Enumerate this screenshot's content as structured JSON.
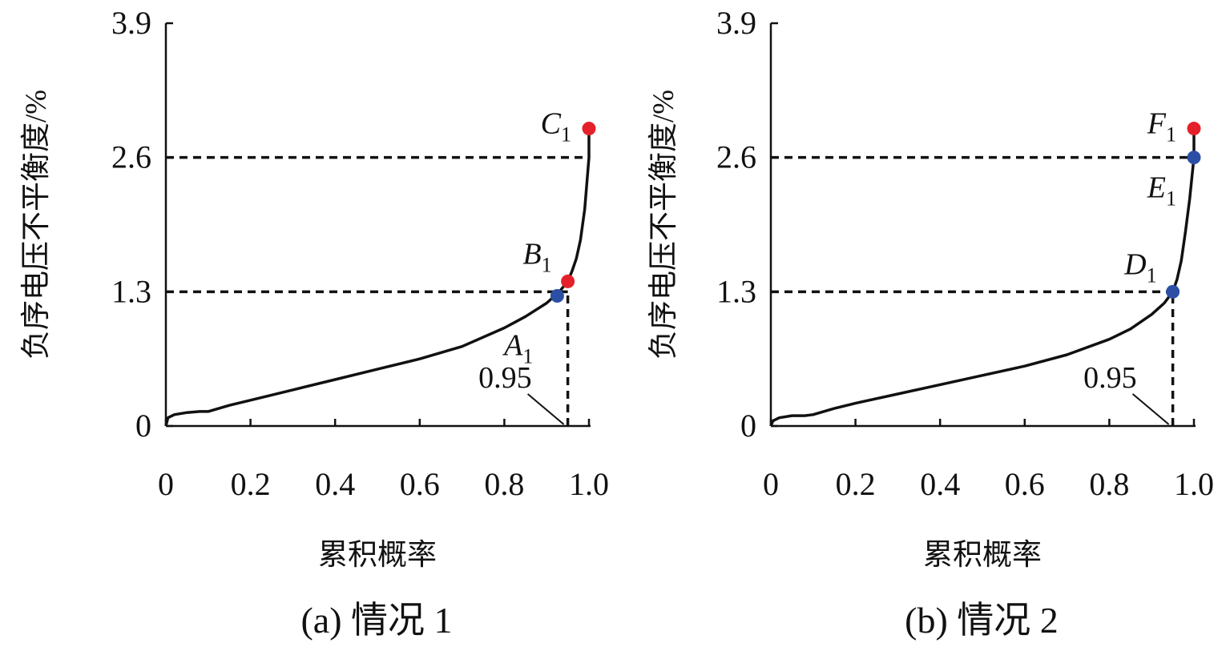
{
  "chart_data": [
    {
      "type": "line",
      "caption": "(a) 情况 1",
      "xlabel": "累积概率",
      "ylabel": "负序电压不平衡度/%",
      "xlim": [
        0,
        1.0
      ],
      "ylim": [
        0,
        3.9
      ],
      "xticks": [
        "0",
        "0.2",
        "0.4",
        "0.6",
        "0.8",
        "1.0"
      ],
      "yticks": [
        "0",
        "1.3",
        "2.6",
        "3.9"
      ],
      "grid": false,
      "series": [
        {
          "x": [
            0,
            0.005,
            0.02,
            0.05,
            0.08,
            0.1,
            0.15,
            0.2,
            0.3,
            0.4,
            0.5,
            0.6,
            0.7,
            0.8,
            0.85,
            0.9,
            0.93,
            0.95,
            0.96,
            0.97,
            0.98,
            0.99,
            1.0,
            1.0
          ],
          "y": [
            0,
            0.08,
            0.11,
            0.13,
            0.14,
            0.14,
            0.2,
            0.25,
            0.35,
            0.45,
            0.55,
            0.65,
            0.77,
            0.95,
            1.06,
            1.19,
            1.3,
            1.4,
            1.5,
            1.62,
            1.8,
            2.1,
            2.6,
            2.88
          ]
        }
      ],
      "reference_lines": [
        {
          "axis": "y",
          "value": 1.3,
          "x_to": 0.95
        },
        {
          "axis": "y",
          "value": 2.6,
          "x_to": 1.0
        },
        {
          "axis": "x",
          "value": 0.95,
          "y_to": 1.3
        }
      ],
      "annotation": {
        "text": "0.95",
        "x": 0.95
      },
      "points": [
        {
          "label": "A",
          "sub": "1",
          "x": 0.925,
          "y": 1.26,
          "color": "#2c4fa6",
          "label_pos": "below"
        },
        {
          "label": "B",
          "sub": "1",
          "x": 0.95,
          "y": 1.4,
          "color": "#e4212b",
          "label_pos": "above-left"
        },
        {
          "label": "C",
          "sub": "1",
          "x": 1.0,
          "y": 2.88,
          "color": "#e4212b",
          "label_pos": "left"
        }
      ]
    },
    {
      "type": "line",
      "caption": "(b) 情况 2",
      "xlabel": "累积概率",
      "ylabel": "负序电压不平衡度/%",
      "xlim": [
        0,
        1.0
      ],
      "ylim": [
        0,
        3.9
      ],
      "xticks": [
        "0",
        "0.2",
        "0.4",
        "0.6",
        "0.8",
        "1.0"
      ],
      "yticks": [
        "0",
        "1.3",
        "2.6",
        "3.9"
      ],
      "grid": false,
      "series": [
        {
          "x": [
            0,
            0.005,
            0.02,
            0.05,
            0.08,
            0.1,
            0.15,
            0.2,
            0.3,
            0.4,
            0.5,
            0.6,
            0.7,
            0.8,
            0.85,
            0.9,
            0.93,
            0.95,
            0.96,
            0.97,
            0.98,
            0.99,
            1.0,
            1.0
          ],
          "y": [
            0,
            0.05,
            0.08,
            0.1,
            0.1,
            0.11,
            0.17,
            0.22,
            0.31,
            0.4,
            0.49,
            0.58,
            0.69,
            0.84,
            0.94,
            1.08,
            1.19,
            1.3,
            1.42,
            1.6,
            1.88,
            2.2,
            2.6,
            2.88
          ]
        }
      ],
      "reference_lines": [
        {
          "axis": "y",
          "value": 1.3,
          "x_to": 0.95
        },
        {
          "axis": "y",
          "value": 2.6,
          "x_to": 1.0
        },
        {
          "axis": "x",
          "value": 0.95,
          "y_to": 1.3
        }
      ],
      "annotation": {
        "text": "0.95",
        "x": 0.95
      },
      "points": [
        {
          "label": "D",
          "sub": "1",
          "x": 0.95,
          "y": 1.3,
          "color": "#2c4fa6",
          "label_pos": "above-left"
        },
        {
          "label": "E",
          "sub": "1",
          "x": 1.0,
          "y": 2.6,
          "color": "#2c4fa6",
          "label_pos": "below-left"
        },
        {
          "label": "F",
          "sub": "1",
          "x": 1.0,
          "y": 2.88,
          "color": "#e4212b",
          "label_pos": "left"
        }
      ]
    }
  ]
}
